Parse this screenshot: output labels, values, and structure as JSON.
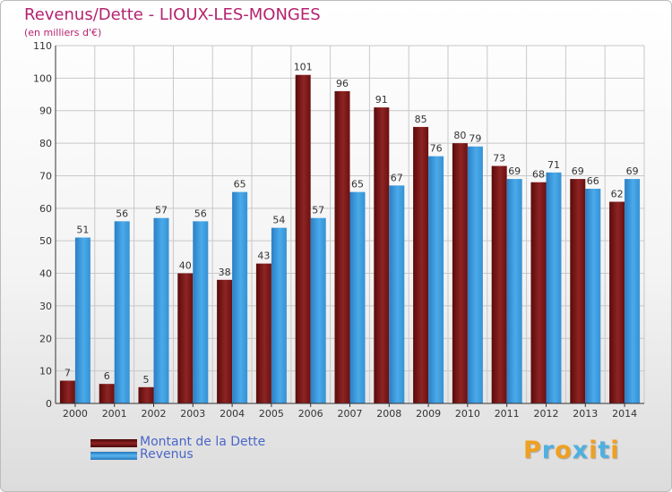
{
  "title": "Revenus/Dette - LIOUX-LES-MONGES",
  "subtitle": "(en milliers d'€)",
  "logo": {
    "text": "Proxiti",
    "letters": [
      "P",
      "r",
      "o",
      "x",
      "i",
      "t",
      "i"
    ],
    "colors": [
      "#f0a020",
      "#4fb0e0",
      "#f0a020",
      "#4fb0e0",
      "#f0a020",
      "#4fb0e0",
      "#f0a020"
    ]
  },
  "chart_data": {
    "type": "bar",
    "categories": [
      "2000",
      "2001",
      "2002",
      "2003",
      "2004",
      "2005",
      "2006",
      "2007",
      "2008",
      "2009",
      "2010",
      "2011",
      "2012",
      "2013",
      "2014"
    ],
    "series": [
      {
        "name": "Montant de la Dette",
        "color": "#8b1a1a",
        "values": [
          7,
          6,
          5,
          40,
          38,
          43,
          101,
          96,
          91,
          85,
          80,
          73,
          68,
          69,
          62
        ]
      },
      {
        "name": "Revenus",
        "color": "#3a9ad9",
        "values": [
          51,
          56,
          57,
          56,
          65,
          54,
          57,
          65,
          67,
          76,
          79,
          69,
          71,
          66,
          69
        ]
      }
    ],
    "ylim": [
      0,
      110
    ],
    "yticks": [
      0,
      10,
      20,
      30,
      40,
      50,
      60,
      70,
      80,
      90,
      100,
      110
    ],
    "grid": true,
    "legend_position": "bottom-left"
  }
}
